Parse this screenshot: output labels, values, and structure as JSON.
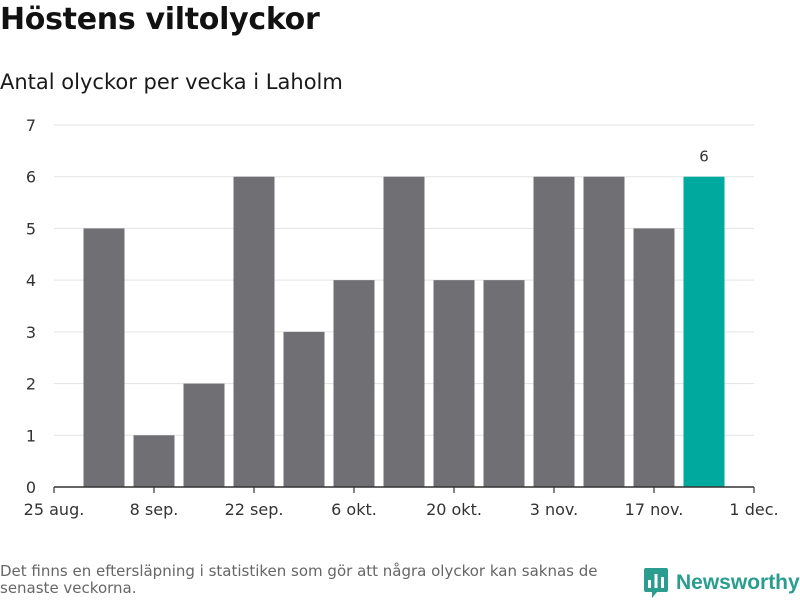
{
  "title": "Höstens viltolyckor",
  "subtitle": "Antal olyckor per vecka i Laholm",
  "footnote": "Det finns en eftersläpning i statistiken som gör att några olyckor kan saknas de senaste veckorna.",
  "brand": {
    "name": "Newsworthy",
    "icon": "bar-chart-logo-icon"
  },
  "colors": {
    "bar": "#707074",
    "highlight": "#00a99d",
    "grid": "#e3e3e3",
    "axis": "#333333",
    "brand": "#2a9d8f"
  },
  "chart_data": {
    "type": "bar",
    "title": "Höstens viltolyckor",
    "subtitle": "Antal olyckor per vecka i Laholm",
    "xlabel": "",
    "ylabel": "",
    "values": [
      5,
      1,
      2,
      6,
      3,
      4,
      6,
      4,
      4,
      6,
      6,
      5,
      6
    ],
    "highlight_index": 12,
    "data_label": {
      "index": 12,
      "text": "6"
    },
    "ylim": [
      0,
      7
    ],
    "yticks": [
      0,
      1,
      2,
      3,
      4,
      5,
      6,
      7
    ],
    "xlim_weeks": [
      0,
      14
    ],
    "xticks": [
      {
        "week": 0,
        "label": "25 aug."
      },
      {
        "week": 2,
        "label": "8 sep."
      },
      {
        "week": 4,
        "label": "22 sep."
      },
      {
        "week": 6,
        "label": "6 okt."
      },
      {
        "week": 8,
        "label": "20 okt."
      },
      {
        "week": 10,
        "label": "3 nov."
      },
      {
        "week": 12,
        "label": "17 nov."
      },
      {
        "week": 14,
        "label": "1 dec."
      }
    ],
    "grid": true
  }
}
